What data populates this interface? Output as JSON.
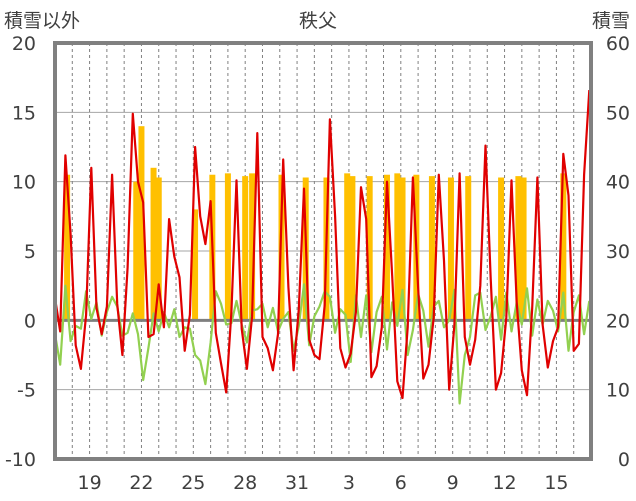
{
  "chart_data": {
    "type": "line",
    "title": "秩父",
    "ylabel_left": "積雪以外",
    "ylabel_right": "積雪",
    "ylim_left": [
      -10,
      20
    ],
    "ylim_right": [
      0,
      60
    ],
    "yticks_left": [
      "20",
      "15",
      "10",
      "5",
      "0",
      "-5",
      "-10"
    ],
    "yticks_right": [
      "60",
      "50",
      "40",
      "30",
      "20",
      "10",
      "0"
    ],
    "xticks": [
      "19",
      "22",
      "25",
      "28",
      "31",
      "3",
      "6",
      "9",
      "12",
      "15"
    ],
    "xtick_days": [
      2,
      5,
      8,
      11,
      14,
      17,
      20,
      23,
      26,
      29
    ],
    "x_range_days": [
      0,
      31
    ],
    "grid": {
      "horizontal": true,
      "vertical_dashed": true
    },
    "colors": {
      "series_red": "#e00000",
      "series_green": "#92d050",
      "bars_orange": "#ffc000",
      "zero_line": "#7f7f7f",
      "baseline": "#7030a0",
      "frame": "#808080",
      "small_blue": "#1f5fbf"
    },
    "series": [
      {
        "color": "#e00000",
        "x": [
          0,
          0.3,
          0.6,
          0.9,
          1.2,
          1.5,
          1.8,
          2.1,
          2.4,
          2.7,
          3.0,
          3.3,
          3.6,
          3.9,
          4.2,
          4.5,
          4.8,
          5.1,
          5.4,
          5.7,
          6.0,
          6.3,
          6.6,
          6.9,
          7.2,
          7.5,
          7.8,
          8.1,
          8.4,
          8.7,
          9.0,
          9.3,
          9.6,
          9.9,
          10.2,
          10.5,
          10.8,
          11.1,
          11.4,
          11.7,
          12.0,
          12.3,
          12.6,
          12.9,
          13.2,
          13.5,
          13.8,
          14.1,
          14.4,
          14.7,
          15.0,
          15.3,
          15.6,
          15.9,
          16.2,
          16.5,
          16.8,
          17.1,
          17.4,
          17.7,
          18.0,
          18.3,
          18.6,
          18.9,
          19.2,
          19.5,
          19.8,
          20.1,
          20.4,
          20.7,
          21.0,
          21.3,
          21.6,
          21.9,
          22.2,
          22.5,
          22.8,
          23.1,
          23.4,
          23.7,
          24.0,
          24.3,
          24.6,
          24.9,
          25.2,
          25.5,
          25.8,
          26.1,
          26.4,
          26.7,
          27.0,
          27.3,
          27.6,
          27.9,
          28.2,
          28.5,
          28.8,
          29.1,
          29.4,
          29.7,
          30.0,
          30.3,
          30.6,
          30.9
        ],
        "y": [
          1.6,
          -0.8,
          11.9,
          6.2,
          -1.8,
          -3.5,
          0.4,
          11.0,
          0.9,
          -1.0,
          1.0,
          10.5,
          1.2,
          -2.5,
          3.8,
          14.9,
          10.0,
          8.5,
          -1.2,
          -1.0,
          2.6,
          -0.5,
          7.3,
          4.6,
          3.1,
          -2.2,
          0.4,
          12.5,
          7.5,
          5.5,
          8.6,
          -0.9,
          -3.1,
          -5.2,
          0.6,
          10.1,
          -0.6,
          -3.5,
          0.3,
          13.5,
          -1.2,
          -2.0,
          -3.6,
          -1.0,
          11.6,
          2.4,
          -3.6,
          0.8,
          9.5,
          -1.4,
          -2.5,
          -2.8,
          1.1,
          14.5,
          7.5,
          -2.0,
          -3.4,
          -2.4,
          0.6,
          9.6,
          7.3,
          -4.1,
          -3.3,
          -0.5,
          10.0,
          3.2,
          -4.4,
          -5.6,
          -0.5,
          10.3,
          2.4,
          -4.2,
          -3.2,
          0.2,
          10.5,
          4.3,
          -5.0,
          -0.3,
          10.6,
          -1.2,
          -3.2,
          -1.4,
          2.5,
          12.6,
          3.0,
          -5.0,
          -3.8,
          0.2,
          10.1,
          1.3,
          -3.6,
          -5.4,
          0.9,
          10.3,
          -0.3,
          -3.4,
          -1.5,
          -0.5,
          12.0,
          9.0,
          -2.2,
          -1.7,
          10.5,
          16.6
        ]
      },
      {
        "color": "#92d050",
        "x": [
          0,
          0.3,
          0.6,
          0.9,
          1.2,
          1.5,
          1.8,
          2.1,
          2.4,
          2.7,
          3.0,
          3.3,
          3.6,
          3.9,
          4.2,
          4.5,
          4.8,
          5.1,
          5.4,
          5.7,
          6.0,
          6.3,
          6.6,
          6.9,
          7.2,
          7.5,
          7.8,
          8.1,
          8.4,
          8.7,
          9.0,
          9.3,
          9.6,
          9.9,
          10.2,
          10.5,
          10.8,
          11.1,
          11.4,
          11.7,
          12.0,
          12.3,
          12.6,
          12.9,
          13.2,
          13.5,
          13.8,
          14.1,
          14.4,
          14.7,
          15.0,
          15.3,
          15.6,
          15.9,
          16.2,
          16.5,
          16.8,
          17.1,
          17.4,
          17.7,
          18.0,
          18.3,
          18.6,
          18.9,
          19.2,
          19.5,
          19.8,
          20.1,
          20.4,
          20.7,
          21.0,
          21.3,
          21.6,
          21.9,
          22.2,
          22.5,
          22.8,
          23.1,
          23.4,
          23.7,
          24.0,
          24.3,
          24.6,
          24.9,
          25.2,
          25.5,
          25.8,
          26.1,
          26.4,
          26.7,
          27.0,
          27.3,
          27.6,
          27.9,
          28.2,
          28.5,
          28.8,
          29.1,
          29.4,
          29.7,
          30.0,
          30.3,
          30.6,
          30.9
        ],
        "y": [
          -1.0,
          -3.2,
          2.5,
          -1.5,
          -0.4,
          -0.6,
          2.1,
          0.1,
          1.3,
          -1.1,
          0.6,
          1.7,
          1.0,
          -1.1,
          -0.9,
          0.5,
          -1.0,
          -4.3,
          -2.0,
          0.5,
          -0.8,
          0.6,
          -0.5,
          0.8,
          -1.2,
          -0.5,
          -0.6,
          -2.5,
          -2.9,
          -4.6,
          -1.6,
          2.1,
          1.2,
          -0.3,
          -0.2,
          1.4,
          -0.3,
          -1.6,
          0.7,
          0.8,
          1.2,
          -0.5,
          0.9,
          -0.8,
          0.1,
          0.6,
          -2.2,
          -0.4,
          2.6,
          -1.8,
          0.3,
          1.0,
          2.1,
          1.7,
          -0.9,
          0.8,
          0.4,
          -3.0,
          1.8,
          -1.2,
          1.8,
          -2.3,
          0.6,
          1.7,
          -2.1,
          1.3,
          -0.4,
          2.2,
          -2.5,
          -0.7,
          1.9,
          0.7,
          -1.9,
          1.0,
          1.4,
          -0.5,
          0.0,
          2.2,
          -6.0,
          -2.5,
          -1.2,
          1.8,
          2.0,
          -0.7,
          0.3,
          1.7,
          -1.4,
          2.0,
          -0.8,
          1.3,
          -0.3,
          2.3,
          -1.1,
          1.5,
          -0.3,
          1.4,
          0.7,
          -0.8,
          2.0,
          -2.2,
          0.6,
          1.8,
          -1.0,
          1.4
        ]
      }
    ],
    "bars": {
      "color": "#ffc000",
      "x": [
        0.7,
        4.7,
        5.0,
        5.7,
        6.0,
        8.1,
        9.1,
        10.0,
        11.0,
        11.4,
        13.1,
        14.5,
        15.7,
        16.9,
        17.2,
        18.2,
        19.2,
        19.8,
        20.1,
        20.9,
        21.8,
        22.9,
        23.9,
        25.8,
        26.8,
        27.1,
        29.4
      ],
      "values": [
        10.5,
        10,
        14,
        11,
        10.3,
        8,
        10.5,
        10.6,
        10.4,
        10.6,
        10.5,
        10.3,
        10.3,
        10.6,
        10.4,
        10.4,
        10.5,
        10.6,
        10.3,
        10.5,
        10.4,
        10.3,
        10.4,
        10.3,
        10.4,
        10.3,
        10.6
      ]
    }
  }
}
